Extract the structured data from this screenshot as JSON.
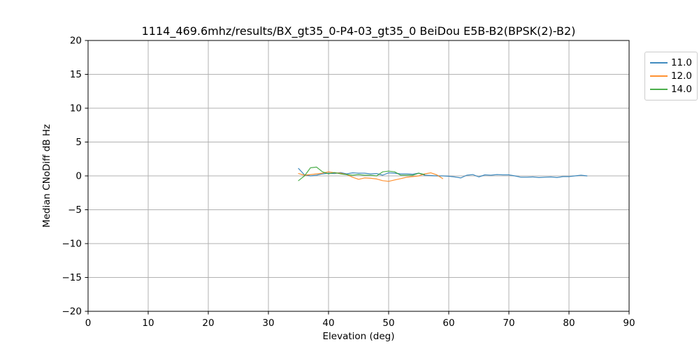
{
  "chart_data": {
    "type": "line",
    "title": "1114_469.6mhz/results/BX_gt35_0-P4-03_gt35_0 BeiDou E5B-B2(BPSK(2)-B2)",
    "xlabel": "Elevation (deg)",
    "ylabel": "Median CNoDiff dB Hz",
    "xlim": [
      0,
      90
    ],
    "ylim": [
      -20,
      20
    ],
    "xticks": [
      0,
      10,
      20,
      30,
      40,
      50,
      60,
      70,
      80,
      90
    ],
    "yticks": [
      -20,
      -15,
      -10,
      -5,
      0,
      5,
      10,
      15,
      20
    ],
    "grid": true,
    "legend": {
      "position": "outside upper right",
      "entries": [
        "11.0",
        "12.0",
        "14.0"
      ]
    },
    "series": [
      {
        "name": "11.0",
        "color": "#1f77b4",
        "x": [
          35,
          36,
          37,
          38,
          39,
          40,
          41,
          42,
          43,
          44,
          45,
          46,
          47,
          48,
          49,
          50,
          51,
          52,
          53,
          54,
          55,
          56,
          57,
          58,
          59,
          60,
          61,
          62,
          63,
          64,
          65,
          66,
          67,
          68,
          69,
          70,
          71,
          72,
          73,
          74,
          75,
          76,
          77,
          78,
          79,
          80,
          81,
          82,
          83
        ],
        "y": [
          1.1,
          0.15,
          0.0,
          0.1,
          0.3,
          0.4,
          0.35,
          0.5,
          0.3,
          0.45,
          0.4,
          0.4,
          0.3,
          0.35,
          0.1,
          0.45,
          0.4,
          0.3,
          0.3,
          0.25,
          0.4,
          0.1,
          0.05,
          0.0,
          0.0,
          -0.05,
          -0.15,
          -0.3,
          0.1,
          0.2,
          -0.15,
          0.15,
          0.1,
          0.2,
          0.15,
          0.15,
          0.0,
          -0.2,
          -0.2,
          -0.15,
          -0.25,
          -0.2,
          -0.15,
          -0.25,
          -0.1,
          -0.1,
          0.0,
          0.1,
          0.0
        ]
      },
      {
        "name": "12.0",
        "color": "#ff7f0e",
        "x": [
          35,
          36,
          37,
          38,
          39,
          40,
          41,
          42,
          43,
          44,
          45,
          46,
          47,
          48,
          49,
          50,
          51,
          52,
          53,
          54,
          55,
          56,
          57,
          58,
          59
        ],
        "y": [
          0.35,
          0.1,
          0.2,
          0.3,
          0.4,
          0.6,
          0.45,
          0.4,
          0.2,
          -0.2,
          -0.5,
          -0.3,
          -0.35,
          -0.45,
          -0.7,
          -0.8,
          -0.6,
          -0.4,
          -0.2,
          -0.1,
          0.0,
          0.3,
          0.45,
          0.15,
          -0.4
        ]
      },
      {
        "name": "14.0",
        "color": "#2ca02c",
        "x": [
          35,
          36,
          37,
          38,
          39,
          40,
          41,
          42,
          43,
          44,
          45,
          46,
          47,
          48,
          49,
          50,
          51,
          52,
          53,
          54,
          55,
          56
        ],
        "y": [
          -0.7,
          0.0,
          1.2,
          1.3,
          0.6,
          0.3,
          0.5,
          0.3,
          0.2,
          0.1,
          0.2,
          0.1,
          0.1,
          0.0,
          0.6,
          0.7,
          0.6,
          0.1,
          0.1,
          0.1,
          0.4,
          0.2
        ]
      }
    ]
  },
  "style": {
    "grid_color": "#b2b2b2",
    "spine_color": "#000000",
    "legend_border_color": "#cccccc",
    "line_width": 1.2
  }
}
